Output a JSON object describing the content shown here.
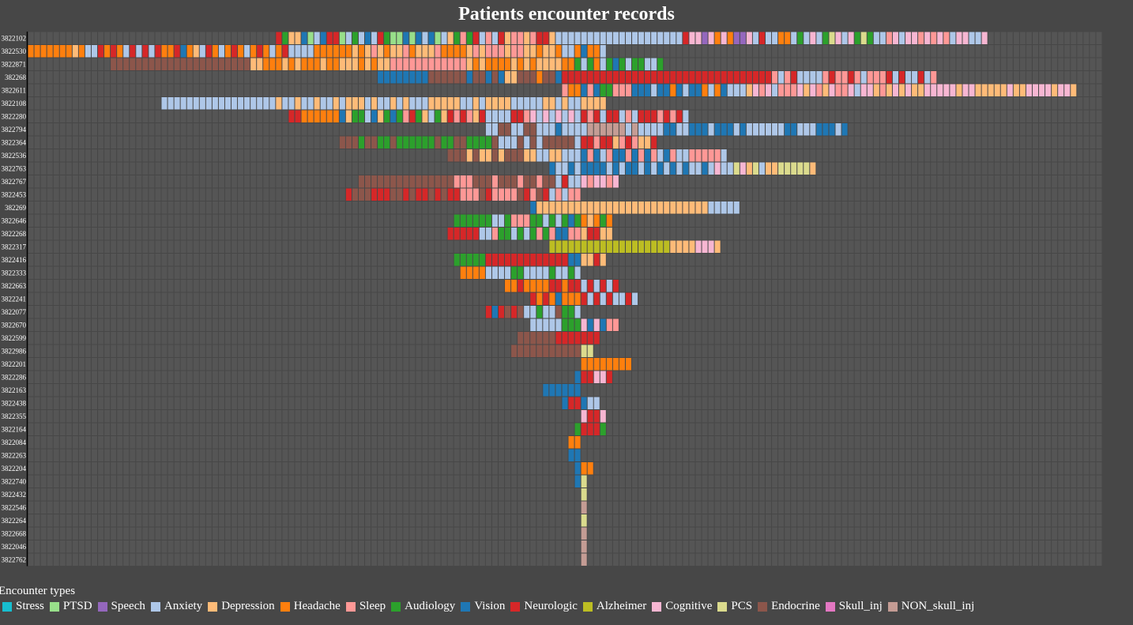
{
  "title": "Patients encounter records",
  "legend_title": "Encounter types",
  "colors": {
    "background": "#474747",
    "grid": "#555555",
    "Stress": "#17becf",
    "PTSD": "#98df8a",
    "Speech": "#9467bd",
    "Anxiety": "#aec7e8",
    "Depression": "#ffbb78",
    "Headache": "#ff7f0e",
    "Sleep": "#ff9896",
    "Audiology": "#2ca02c",
    "Vision": "#1f77b4",
    "Neurologic": "#d62728",
    "Alzheimer": "#bcbd22",
    "Cognitive": "#f7b6d2",
    "PCS": "#dbdb8d",
    "Endocrine": "#8c564b",
    "Skull_inj": "#e377c2",
    "NON_skull_inj": "#c49c94"
  },
  "chart_data": {
    "type": "heatmap",
    "title": "Patients encounter records",
    "legend_title": "Encounter types",
    "legend_position": "bottom-left",
    "grid": true,
    "encounter_types": [
      "Stress",
      "PTSD",
      "Speech",
      "Anxiety",
      "Depression",
      "Headache",
      "Sleep",
      "Audiology",
      "Vision",
      "Neurologic",
      "Alzheimer",
      "Cognitive",
      "PCS",
      "Endocrine",
      "Skull_inj",
      "NON_skull_inj"
    ],
    "patients": [
      "3822102",
      "3822530",
      "3822871",
      "382268",
      "3822611",
      "3822108",
      "3822280",
      "3822794",
      "3822364",
      "3822536",
      "3822763",
      "3822767",
      "3822453",
      "382269",
      "3822646",
      "3822268",
      "3822317",
      "3822416",
      "3822333",
      "3822663",
      "3822241",
      "3822077",
      "3822670",
      "3822599",
      "3822986",
      "3822201",
      "3822286",
      "3822163",
      "3822438",
      "3822355",
      "3822164",
      "3822084",
      "3822263",
      "3822204",
      "3822740",
      "3822432",
      "3822546",
      "3822264",
      "3822668",
      "3822046",
      "3822762"
    ],
    "x_range": [
      -87,
      78
    ],
    "columns": 169,
    "reference_column": 0,
    "records": [
      {
        "start": -48,
        "end": 64,
        "segments": [
          [
            -48,
            -30,
            "mix:Vision,Audiology,PTSD,Neurologic,Anxiety,Depression"
          ],
          [
            -30,
            -3,
            "mix:Neurologic,PTSD,Anxiety,Audiology,Depression,Vision,Sleep"
          ],
          [
            -3,
            16,
            "Anxiety"
          ],
          [
            16,
            34,
            "mix:Neurologic,Speech,Cognitive,Anxiety,Headache"
          ],
          [
            34,
            48,
            "mix:Neurologic,Audiology,Anxiety,PCS,Cognitive"
          ],
          [
            48,
            64,
            "mix:Anxiety,Sleep,Cognitive"
          ]
        ]
      },
      {
        "start": -87,
        "end": 4,
        "segments": [
          [
            -87,
            -80,
            "Headache"
          ],
          [
            -80,
            -58,
            "mix:Headache,Vision,Neurologic,Anxiety,Depression"
          ],
          [
            -58,
            -42,
            "mix:Headache,Neurologic,Anxiety"
          ],
          [
            -42,
            -3,
            "mix:Headache,Depression,Sleep"
          ],
          [
            -3,
            4,
            "mix:Anxiety,Vision,Headache"
          ]
        ]
      },
      {
        "start": -74,
        "end": 13,
        "segments": [
          [
            -74,
            -52,
            "Endocrine"
          ],
          [
            -52,
            -30,
            "mix:Headache,Depression"
          ],
          [
            -30,
            -18,
            "Sleep"
          ],
          [
            -18,
            -2,
            "mix:Headache,Depression"
          ],
          [
            -2,
            13,
            "mix:Audiology,Vision,Headache,Anxiety"
          ]
        ]
      },
      {
        "start": -32,
        "end": 56,
        "segments": [
          [
            -32,
            -24,
            "Vision"
          ],
          [
            -24,
            -18,
            "Endocrine"
          ],
          [
            -18,
            -12,
            "mix:Vision,Endocrine"
          ],
          [
            -12,
            -4,
            "mix:Depression,Endocrine,Headache"
          ],
          [
            -4,
            0,
            "mix:Neurologic,Vision"
          ],
          [
            0,
            28,
            "Neurologic"
          ],
          [
            28,
            56,
            "mix:Anxiety,Sleep,Neurologic"
          ]
        ]
      },
      {
        "start": -3,
        "end": 78,
        "segments": [
          [
            -3,
            8,
            "mix:Vision,Audiology,Headache,Sleep"
          ],
          [
            8,
            26,
            "mix:Vision,Headache,Anxiety"
          ],
          [
            26,
            50,
            "mix:Sleep,Depression,Cognitive,Anxiety"
          ],
          [
            50,
            78,
            "mix:Depression,Cognitive"
          ]
        ]
      },
      {
        "start": -66,
        "end": 4,
        "segments": [
          [
            -66,
            -48,
            "Anxiety"
          ],
          [
            -48,
            -30,
            "mix:Anxiety,Depression"
          ],
          [
            -30,
            0,
            "mix:Depression,Anxiety"
          ],
          [
            0,
            4,
            "Depression"
          ]
        ]
      },
      {
        "start": -46,
        "end": 17,
        "segments": [
          [
            -46,
            -38,
            "mix:Headache,Neurologic"
          ],
          [
            -38,
            -28,
            "mix:Audiology,Vision,Anxiety,Depression"
          ],
          [
            -28,
            -8,
            "mix:Neurologic,Audiology,Anxiety,Sleep,Depression"
          ],
          [
            -8,
            0,
            "mix:Anxiety,Cognitive"
          ],
          [
            0,
            17,
            "mix:Sleep,Neurologic,Anxiety"
          ]
        ]
      },
      {
        "start": -15,
        "end": 42,
        "segments": [
          [
            -15,
            -5,
            "mix:Anxiety,Endocrine"
          ],
          [
            -5,
            0,
            "mix:Anxiety,Vision"
          ],
          [
            0,
            10,
            "mix:NON_skull_inj,Anxiety"
          ],
          [
            10,
            42,
            "mix:Anxiety,Vision"
          ]
        ]
      },
      {
        "start": -38,
        "end": 12,
        "segments": [
          [
            -38,
            -14,
            "mix:Endocrine,Audiology"
          ],
          [
            -14,
            0,
            "mix:Anxiety,Endocrine"
          ],
          [
            0,
            12,
            "mix:Neurologic,Audiology,Depression,Sleep"
          ]
        ]
      },
      {
        "start": -21,
        "end": 23,
        "segments": [
          [
            -21,
            -9,
            "mix:Depression,Endocrine"
          ],
          [
            -9,
            0,
            "mix:Anxiety,Depression"
          ],
          [
            0,
            23,
            "mix:Anxiety,Vision,Sleep"
          ]
        ]
      },
      {
        "start": -5,
        "end": 37,
        "segments": [
          [
            -5,
            0,
            "mix:Anxiety,Vision"
          ],
          [
            0,
            20,
            "mix:Anxiety,Vision"
          ],
          [
            20,
            37,
            "mix:Depression,PCS,Cognitive,Anxiety"
          ]
        ]
      },
      {
        "start": -35,
        "end": 6,
        "segments": [
          [
            -35,
            -21,
            "Endocrine"
          ],
          [
            -21,
            -4,
            "mix:Sleep,Endocrine"
          ],
          [
            -4,
            0,
            "mix:Anxiety,Neurologic"
          ],
          [
            0,
            6,
            "mix:Sleep,Cognitive"
          ]
        ]
      },
      {
        "start": -37,
        "end": 0,
        "segments": [
          [
            -37,
            -21,
            "mix:Endocrine,Neurologic"
          ],
          [
            -21,
            -6,
            "mix:Endocrine,Sleep,Neurologic"
          ],
          [
            -6,
            0,
            "mix:Neurologic,Sleep,Anxiety"
          ]
        ]
      },
      {
        "start": -8,
        "end": 25,
        "segments": [
          [
            -8,
            -7,
            "Vision"
          ],
          [
            -7,
            20,
            "Depression"
          ],
          [
            20,
            25,
            "Anxiety"
          ]
        ]
      },
      {
        "start": -20,
        "end": 5,
        "segments": [
          [
            -20,
            -14,
            "Audiology"
          ],
          [
            -14,
            -4,
            "mix:Audiology,Anxiety,Sleep"
          ],
          [
            -4,
            0,
            "mix:Audiology,Vision,Anxiety"
          ],
          [
            0,
            5,
            "mix:Headache,Audiology,Depression"
          ]
        ]
      },
      {
        "start": -21,
        "end": 5,
        "segments": [
          [
            -21,
            -14,
            "mix:Neurologic,Anxiety"
          ],
          [
            -14,
            -4,
            "mix:Audiology,Sleep,Anxiety"
          ],
          [
            -4,
            0,
            "mix:Vision,Sleep"
          ],
          [
            0,
            5,
            "mix:Depression,Neurologic"
          ]
        ]
      },
      {
        "start": -5,
        "end": 22,
        "segments": [
          [
            -5,
            0,
            "Alzheimer"
          ],
          [
            0,
            14,
            "Alzheimer"
          ],
          [
            14,
            22,
            "mix:Depression,Cognitive"
          ]
        ]
      },
      {
        "start": -20,
        "end": 4,
        "segments": [
          [
            -20,
            -15,
            "Audiology"
          ],
          [
            -15,
            -2,
            "Neurologic"
          ],
          [
            -2,
            0,
            "mix:Vision,Anxiety"
          ],
          [
            0,
            4,
            "mix:Neurologic,Depression"
          ]
        ]
      },
      {
        "start": -19,
        "end": 0,
        "segments": [
          [
            -19,
            -15,
            "Headache"
          ],
          [
            -15,
            0,
            "mix:Anxiety,Audiology"
          ]
        ]
      },
      {
        "start": -12,
        "end": 6,
        "segments": [
          [
            -12,
            0,
            "mix:Headache,Neurologic"
          ],
          [
            0,
            6,
            "mix:Neurologic,Anxiety"
          ]
        ]
      },
      {
        "start": -8,
        "end": 9,
        "segments": [
          [
            -8,
            0,
            "mix:Neurologic,Vision,Headache"
          ],
          [
            0,
            9,
            "mix:Neurologic,Anxiety"
          ]
        ]
      },
      {
        "start": -15,
        "end": 0,
        "segments": [
          [
            -15,
            -9,
            "mix:Vision,Endocrine,Neurologic"
          ],
          [
            -9,
            0,
            "mix:Endocrine,Anxiety,Audiology"
          ]
        ]
      },
      {
        "start": -8,
        "end": 6,
        "segments": [
          [
            -8,
            -3,
            "Anxiety"
          ],
          [
            -3,
            0,
            "mix:Audiology,PTSD"
          ],
          [
            0,
            6,
            "mix:Sleep,Vision,Cognitive"
          ]
        ]
      },
      {
        "start": -10,
        "end": 3,
        "segments": [
          [
            -10,
            -4,
            "Endocrine"
          ],
          [
            -4,
            0,
            "Neurologic"
          ],
          [
            0,
            3,
            "mix:Neurologic,PCS"
          ]
        ]
      },
      {
        "start": -11,
        "end": 2,
        "segments": [
          [
            -11,
            0,
            "Endocrine"
          ],
          [
            0,
            2,
            "PCS"
          ]
        ]
      },
      {
        "start": 0,
        "end": 8,
        "segments": [
          [
            0,
            8,
            "Headache"
          ]
        ]
      },
      {
        "start": -1,
        "end": 5,
        "segments": [
          [
            -1,
            0,
            "Vision"
          ],
          [
            0,
            5,
            "mix:Neurologic,Cognitive"
          ]
        ]
      },
      {
        "start": -6,
        "end": 0,
        "segments": [
          [
            -6,
            -2,
            "Vision"
          ],
          [
            -2,
            0,
            "Vision"
          ]
        ]
      },
      {
        "start": -3,
        "end": 3,
        "segments": [
          [
            -3,
            -2,
            "Vision"
          ],
          [
            -2,
            0,
            "Neurologic"
          ],
          [
            0,
            3,
            "mix:Vision,Anxiety"
          ]
        ]
      },
      {
        "start": 0,
        "end": 4,
        "segments": [
          [
            0,
            4,
            "mix:Neurologic,Cognitive"
          ]
        ]
      },
      {
        "start": -1,
        "end": 4,
        "segments": [
          [
            -1,
            0,
            "Audiology"
          ],
          [
            0,
            4,
            "mix:Neurologic,Audiology"
          ]
        ]
      },
      {
        "start": -2,
        "end": 0,
        "segments": [
          [
            -2,
            0,
            "mix:Endocrine,Headache"
          ]
        ]
      },
      {
        "start": -2,
        "end": 0,
        "segments": [
          [
            -2,
            0,
            "Vision"
          ]
        ]
      },
      {
        "start": -1,
        "end": 2,
        "segments": [
          [
            -1,
            0,
            "Vision"
          ],
          [
            0,
            2,
            "Headache"
          ]
        ]
      },
      {
        "start": -1,
        "end": 1,
        "segments": [
          [
            -1,
            0,
            "Vision"
          ],
          [
            0,
            1,
            "PCS"
          ]
        ]
      },
      {
        "start": 0,
        "end": 1,
        "segments": [
          [
            0,
            1,
            "PCS"
          ]
        ]
      },
      {
        "start": 0,
        "end": 1,
        "segments": [
          [
            0,
            1,
            "NON_skull_inj"
          ]
        ]
      },
      {
        "start": 0,
        "end": 1,
        "segments": [
          [
            0,
            1,
            "PCS"
          ]
        ]
      },
      {
        "start": 0,
        "end": 1,
        "segments": [
          [
            0,
            1,
            "NON_skull_inj"
          ]
        ]
      },
      {
        "start": 0,
        "end": 1,
        "segments": [
          [
            0,
            1,
            "NON_skull_inj"
          ]
        ]
      },
      {
        "start": 0,
        "end": 1,
        "segments": [
          [
            0,
            1,
            "NON_skull_inj"
          ]
        ]
      }
    ]
  }
}
